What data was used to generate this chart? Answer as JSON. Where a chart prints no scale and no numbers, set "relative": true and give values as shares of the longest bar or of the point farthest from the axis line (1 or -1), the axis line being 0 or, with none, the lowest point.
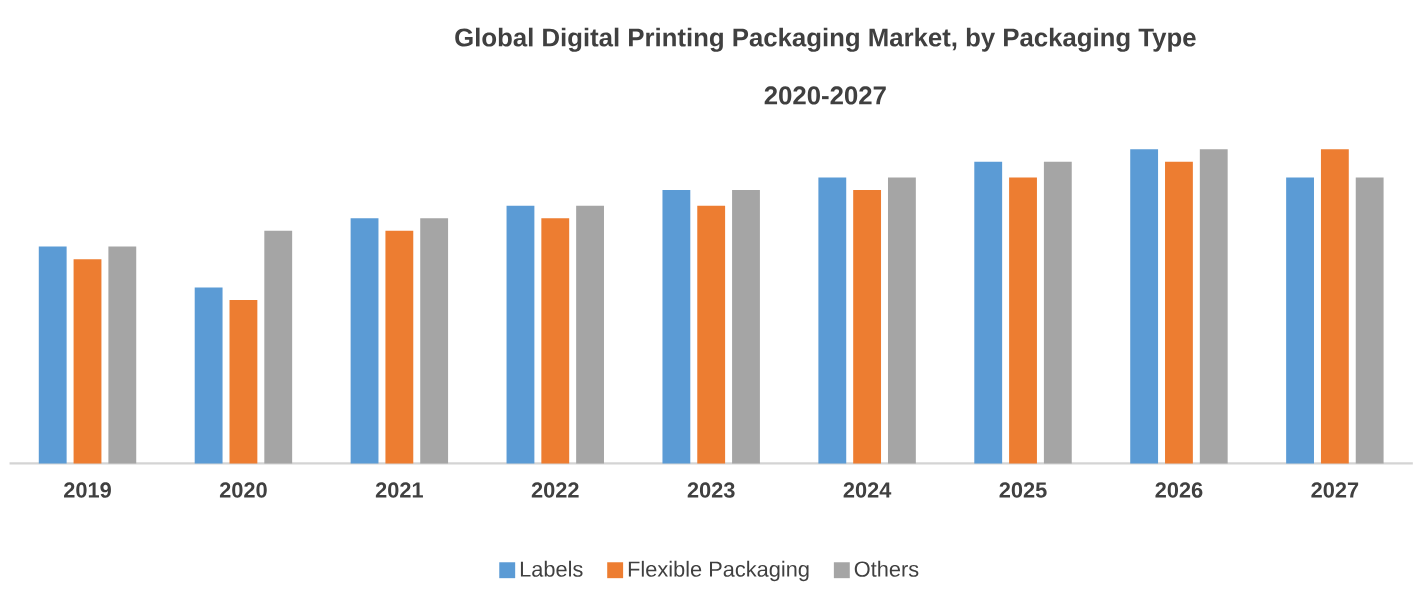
{
  "chart_data": {
    "type": "bar",
    "title": "Global Digital Printing Packaging Market, by Packaging Type",
    "subtitle": "2020-2027",
    "relative": true,
    "legend": "bottom",
    "categories": [
      "2019",
      "2020",
      "2021",
      "2022",
      "2023",
      "2024",
      "2025",
      "2026",
      "2027"
    ],
    "series": [
      {
        "name": "Labels",
        "color": "#5b9bd5",
        "values": [
          0.69,
          0.56,
          0.78,
          0.82,
          0.87,
          0.91,
          0.96,
          1,
          0.91
        ]
      },
      {
        "name": "Flexible Packaging",
        "color": "#ed7d31",
        "values": [
          0.65,
          0.52,
          0.74,
          0.78,
          0.82,
          0.87,
          0.91,
          0.96,
          1
        ]
      },
      {
        "name": "Others",
        "color": "#a5a5a5",
        "values": [
          0.69,
          0.74,
          0.78,
          0.82,
          0.87,
          0.91,
          0.96,
          1,
          0.91
        ]
      }
    ]
  }
}
